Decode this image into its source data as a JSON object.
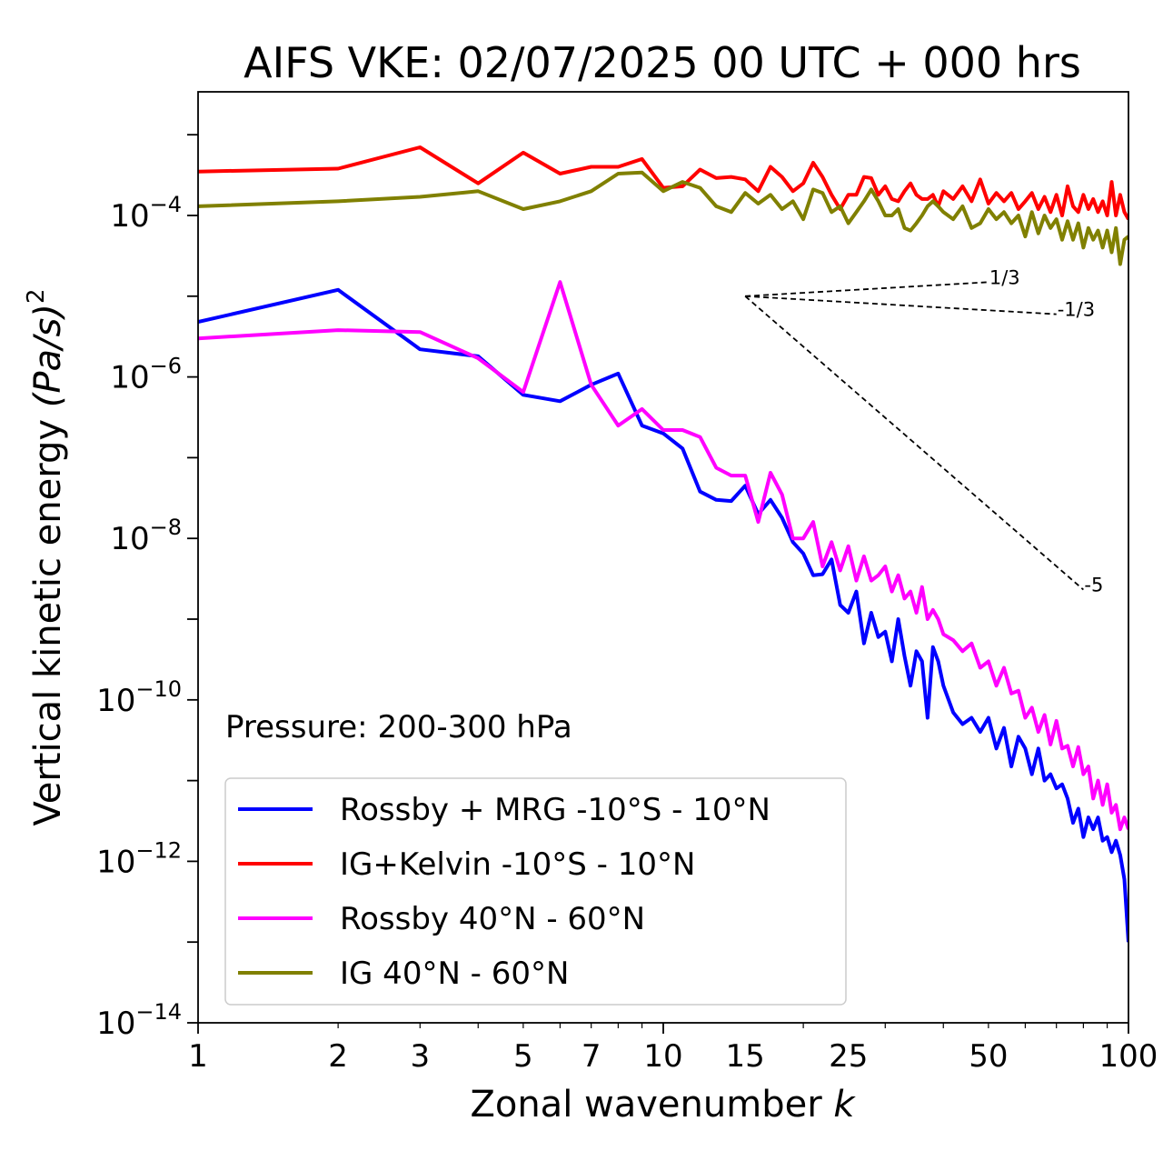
{
  "chart_data": {
    "type": "line",
    "title": "AIFS VKE: 02/07/2025 00 UTC + 000 hrs",
    "xlabel": "Zonal wavenumber ",
    "xlabel_italic": "k",
    "ylabel": "Vertical kinetic energy ",
    "ylabel_math": "(Pa/s)",
    "ylabel_sup": "2",
    "xscale": "log",
    "yscale": "log",
    "xlim": [
      1,
      100
    ],
    "ylim": [
      1e-14,
      0.0034
    ],
    "xticks": [
      {
        "value": 1,
        "label": "1"
      },
      {
        "value": 2,
        "label": "2"
      },
      {
        "value": 3,
        "label": "3"
      },
      {
        "value": 5,
        "label": "5"
      },
      {
        "value": 7,
        "label": "7"
      },
      {
        "value": 10,
        "label": "10"
      },
      {
        "value": 15,
        "label": "15"
      },
      {
        "value": 25,
        "label": "25"
      },
      {
        "value": 50,
        "label": "50"
      },
      {
        "value": 100,
        "label": "100"
      }
    ],
    "yticks": [
      {
        "value": 1e-14,
        "base": "10",
        "exp": "−14"
      },
      {
        "value": 1e-12,
        "base": "10",
        "exp": "−12"
      },
      {
        "value": 1e-10,
        "base": "10",
        "exp": "−10"
      },
      {
        "value": 1e-08,
        "base": "10",
        "exp": "−8"
      },
      {
        "value": 1e-06,
        "base": "10",
        "exp": "−6"
      },
      {
        "value": 0.0001,
        "base": "10",
        "exp": "−4"
      }
    ],
    "annotation": "Pressure: 200-300 hPa",
    "legend_position": "lower-left",
    "reference_slopes": [
      {
        "label": "1/3",
        "slope": 0.3333,
        "x0": 15,
        "y0": 1e-05,
        "x1": 50
      },
      {
        "label": "-1/3",
        "slope": -0.3333,
        "x0": 15,
        "y0": 1e-05,
        "x1": 70
      },
      {
        "label": "-5",
        "slope": -5,
        "x0": 15,
        "y0": 1e-05,
        "x1": 80
      }
    ],
    "series": [
      {
        "name": "Rossby + MRG -10°S - 10°N",
        "color": "#0000ff",
        "x": [
          1,
          2,
          3,
          4,
          5,
          6,
          7,
          8,
          9,
          10,
          11,
          12,
          13,
          14,
          15,
          16,
          17,
          18,
          19,
          20,
          21,
          22,
          23,
          24,
          25,
          26,
          27,
          28,
          29,
          30,
          31,
          32,
          33,
          34,
          35,
          36,
          37,
          38,
          39,
          40,
          42,
          44,
          46,
          48,
          50,
          52,
          54,
          56,
          58,
          60,
          62,
          64,
          66,
          68,
          70,
          72,
          74,
          76,
          78,
          80,
          82,
          84,
          86,
          88,
          90,
          92,
          94,
          96,
          98,
          100
        ],
        "y": [
          4.8e-06,
          1.2e-05,
          2.2e-06,
          1.8e-06,
          6e-07,
          5e-07,
          8e-07,
          1.1e-06,
          2.5e-07,
          2e-07,
          1.3e-07,
          3.8e-08,
          3e-08,
          2.9e-08,
          4.5e-08,
          2e-08,
          3e-08,
          1.8e-08,
          9e-09,
          6.5e-09,
          3.5e-09,
          3.6e-09,
          5.5e-09,
          1.5e-09,
          1.2e-09,
          2.2e-09,
          5e-10,
          1.2e-09,
          6e-10,
          7e-10,
          3e-10,
          1e-09,
          3.5e-10,
          1.5e-10,
          4e-10,
          3e-10,
          6e-11,
          4.5e-10,
          3e-10,
          1.5e-10,
          7e-11,
          5e-11,
          6e-11,
          4e-11,
          6e-11,
          2.5e-11,
          4.5e-11,
          1.5e-11,
          3.5e-11,
          2.5e-11,
          1.2e-11,
          2.5e-11,
          1e-11,
          1.2e-11,
          8e-12,
          9e-12,
          6e-12,
          3e-12,
          4.5e-12,
          2e-12,
          3.5e-12,
          2.5e-12,
          3.5e-12,
          1.8e-12,
          2e-12,
          1.3e-12,
          1.8e-12,
          1.2e-12,
          6e-13,
          1e-13
        ]
      },
      {
        "name": "IG+Kelvin -10°S - 10°N",
        "color": "#ff0000",
        "x": [
          1,
          2,
          3,
          4,
          5,
          6,
          7,
          8,
          9,
          10,
          11,
          12,
          13,
          14,
          15,
          16,
          17,
          18,
          19,
          20,
          21,
          22,
          23,
          24,
          25,
          26,
          27,
          28,
          29,
          30,
          31,
          32,
          33,
          34,
          35,
          36,
          37,
          38,
          39,
          40,
          42,
          44,
          46,
          48,
          50,
          52,
          54,
          56,
          58,
          60,
          62,
          64,
          66,
          68,
          70,
          72,
          74,
          76,
          78,
          80,
          82,
          84,
          86,
          88,
          90,
          92,
          94,
          96,
          98,
          100
        ],
        "y": [
          0.00035,
          0.00038,
          0.0007,
          0.00025,
          0.0006,
          0.00033,
          0.0004,
          0.0004,
          0.0005,
          0.00022,
          0.00023,
          0.00037,
          0.00029,
          0.0003,
          0.00028,
          0.0002,
          0.0004,
          0.0003,
          0.0002,
          0.00025,
          0.00045,
          0.0003,
          0.00018,
          0.00012,
          0.00018,
          0.00018,
          0.0003,
          0.00029,
          0.00018,
          0.00023,
          0.00016,
          0.00015,
          0.0002,
          0.00025,
          0.00018,
          0.00016,
          0.00016,
          0.00018,
          0.00013,
          0.0002,
          0.00016,
          0.00023,
          0.00015,
          0.00028,
          0.00014,
          0.00019,
          0.00015,
          0.00019,
          0.00012,
          0.00015,
          0.00019,
          0.00012,
          0.00017,
          0.00011,
          0.00018,
          0.0001,
          0.00023,
          0.00013,
          0.00011,
          0.00018,
          0.00012,
          0.00016,
          0.00011,
          0.00015,
          0.0001,
          0.00026,
          0.0001,
          0.00018,
          0.00011,
          9e-05
        ]
      },
      {
        "name": "Rossby 40°N - 60°N",
        "color": "#ff00ff",
        "x": [
          1,
          2,
          3,
          4,
          5,
          6,
          7,
          8,
          9,
          10,
          11,
          12,
          13,
          14,
          15,
          16,
          17,
          18,
          19,
          20,
          21,
          22,
          23,
          24,
          25,
          26,
          27,
          28,
          29,
          30,
          31,
          32,
          33,
          34,
          35,
          36,
          37,
          38,
          39,
          40,
          42,
          44,
          46,
          48,
          50,
          52,
          54,
          56,
          58,
          60,
          62,
          64,
          66,
          68,
          70,
          72,
          74,
          76,
          78,
          80,
          82,
          84,
          86,
          88,
          90,
          92,
          94,
          96,
          98,
          100
        ],
        "y": [
          3e-06,
          3.8e-06,
          3.6e-06,
          1.7e-06,
          6.5e-07,
          1.5e-05,
          8e-07,
          2.5e-07,
          4e-07,
          2.2e-07,
          2.2e-07,
          1.8e-07,
          7.5e-08,
          6e-08,
          6e-08,
          1.6e-08,
          6.5e-08,
          3.5e-08,
          1e-08,
          1e-08,
          1.6e-08,
          4.5e-09,
          9e-09,
          4e-09,
          8e-09,
          3e-09,
          6e-09,
          3e-09,
          3.5e-09,
          4.5e-09,
          2.2e-09,
          3.5e-09,
          1.8e-09,
          2.2e-09,
          1.2e-09,
          2.5e-09,
          1e-09,
          1.3e-09,
          1e-09,
          6.5e-10,
          5.5e-10,
          4e-10,
          5e-10,
          2.5e-10,
          3e-10,
          1.5e-10,
          2.5e-10,
          1.2e-10,
          1.3e-10,
          6e-11,
          8e-11,
          4e-11,
          6.5e-11,
          2.8e-11,
          5.5e-11,
          2.5e-11,
          2.7e-11,
          1.5e-11,
          2.6e-11,
          1.2e-11,
          1.5e-11,
          6e-12,
          1e-11,
          5e-12,
          9e-12,
          4e-12,
          5e-12,
          2.5e-12,
          3.5e-12,
          2.5e-12
        ]
      },
      {
        "name": "IG 40°N - 60°N",
        "color": "#808000",
        "x": [
          1,
          2,
          3,
          4,
          5,
          6,
          7,
          8,
          9,
          10,
          11,
          12,
          13,
          14,
          15,
          16,
          17,
          18,
          19,
          20,
          21,
          22,
          23,
          24,
          25,
          26,
          27,
          28,
          29,
          30,
          31,
          32,
          33,
          34,
          35,
          36,
          37,
          38,
          39,
          40,
          42,
          44,
          46,
          48,
          50,
          52,
          54,
          56,
          58,
          60,
          62,
          64,
          66,
          68,
          70,
          72,
          74,
          76,
          78,
          80,
          82,
          84,
          86,
          88,
          90,
          92,
          94,
          96,
          98,
          100
        ],
        "y": [
          0.00013,
          0.00015,
          0.00017,
          0.0002,
          0.00012,
          0.00015,
          0.0002,
          0.00033,
          0.00034,
          0.0002,
          0.00026,
          0.00022,
          0.00013,
          0.00011,
          0.00019,
          0.00014,
          0.00018,
          0.00012,
          0.00015,
          9e-05,
          0.00021,
          0.00019,
          0.00011,
          0.00013,
          8e-05,
          0.00011,
          0.00015,
          0.00021,
          0.00015,
          0.0001,
          0.0001,
          0.00012,
          7e-05,
          6.5e-05,
          8e-05,
          0.0001,
          0.00013,
          0.00015,
          0.00013,
          0.00011,
          9e-05,
          0.00013,
          7e-05,
          8e-05,
          0.00012,
          9e-05,
          0.00011,
          8e-05,
          0.0001,
          5.5e-05,
          0.00011,
          6e-05,
          0.0001,
          7e-05,
          9e-05,
          5e-05,
          8.5e-05,
          5e-05,
          8e-05,
          4e-05,
          7e-05,
          5e-05,
          6.5e-05,
          4e-05,
          6.5e-05,
          3.5e-05,
          7e-05,
          2.5e-05,
          5e-05,
          5.5e-05
        ]
      }
    ]
  }
}
